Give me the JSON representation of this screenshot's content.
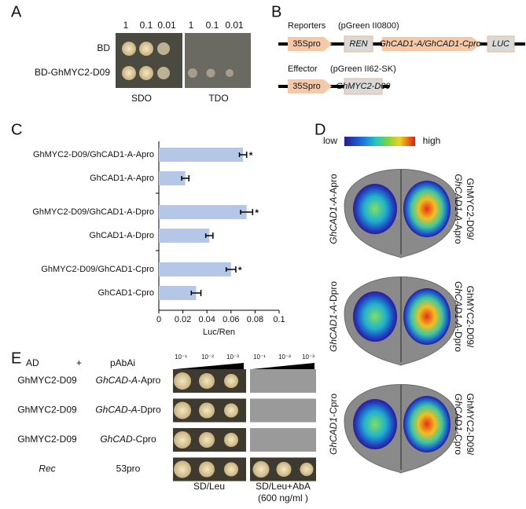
{
  "panels": {
    "A": {
      "label": "A",
      "columns": [
        "1",
        "0.1",
        "0.01",
        "1",
        "0.1",
        "0.01"
      ],
      "rows": [
        "BD",
        "BD-GhMYC2-D09"
      ],
      "plates": [
        "SDO",
        "TDO"
      ]
    },
    "B": {
      "label": "B",
      "reporters": "Reporters",
      "reporters_vector": "(pGreen II0800)",
      "reporter_parts": [
        "35Spro",
        "REN",
        "GhCAD1-A/GhCAD1-Cpro",
        "LUC"
      ],
      "effector": "Effector",
      "effector_vector": "(pGreen II62-SK)",
      "effector_parts": [
        "35Spro",
        "GhMYC2-D09"
      ]
    },
    "C": {
      "label": "C"
    },
    "D": {
      "label": "D",
      "low": "low",
      "high": "high",
      "leaves": [
        {
          "left_italic": "GhCAD1-A",
          "left": "-Apro",
          "right_top": "GhMYC2-D09/",
          "right_italic": "GhCAD1-A",
          "right": "-Apro"
        },
        {
          "left_italic": "GhCAD1-A",
          "left": "-Dpro",
          "right_top": "GhMYC2-D09/",
          "right_italic": "GhCAD1-A",
          "right": "-Dpro"
        },
        {
          "left_italic": "GhCAD1",
          "left": "-Cpro",
          "right_top": "GhMYC2-D09/",
          "right_italic": "GhCAD1",
          "right": "-Cpro"
        }
      ]
    },
    "E": {
      "label": "E",
      "ad": "AD",
      "plus": "+",
      "pabai": "pAbAi",
      "dilutions": [
        "10⁻¹",
        "10⁻²",
        "10⁻³",
        "10⁻¹",
        "10⁻²",
        "10⁻³"
      ],
      "rows": [
        {
          "ad": "GhMYC2-D09",
          "bait_italic": "GhCAD-A",
          "bait": "-Apro"
        },
        {
          "ad": "GhMYC2-D09",
          "bait_italic": "GhCAD-A",
          "bait": "-Dpro"
        },
        {
          "ad": "GhMYC2-D09",
          "bait_italic": "GhCAD",
          "bait": "-Cpro"
        },
        {
          "ad": "Rec",
          "bait_italic": "",
          "bait": "53pro"
        }
      ],
      "plate1": "SD/Leu",
      "plate2": "SD/Leu+AbA",
      "plate2_note": "(600 ng/ml )"
    }
  },
  "chart_data": {
    "type": "bar",
    "orientation": "horizontal",
    "categories": [
      "GhMYC2-D09/GhCAD1-A-Apro",
      "GhCAD1-A-Apro",
      "GhMYC2-D09/GhCAD1-A-Dpro",
      "GhCAD1-A-Dpro",
      "GhMYC2-D09/GhCAD1-Cpro",
      "GhCAD1-Cpro"
    ],
    "values": [
      0.07,
      0.022,
      0.073,
      0.042,
      0.06,
      0.031
    ],
    "errors": [
      0.003,
      0.003,
      0.005,
      0.003,
      0.004,
      0.004
    ],
    "significance": [
      "*",
      null,
      "*",
      null,
      "*",
      null
    ],
    "color": "#b4c7e7",
    "xlabel": "Luc/Ren",
    "xlim": [
      0,
      0.1
    ],
    "xticks": [
      0,
      0.02,
      0.04,
      0.06,
      0.08,
      0.1
    ]
  }
}
